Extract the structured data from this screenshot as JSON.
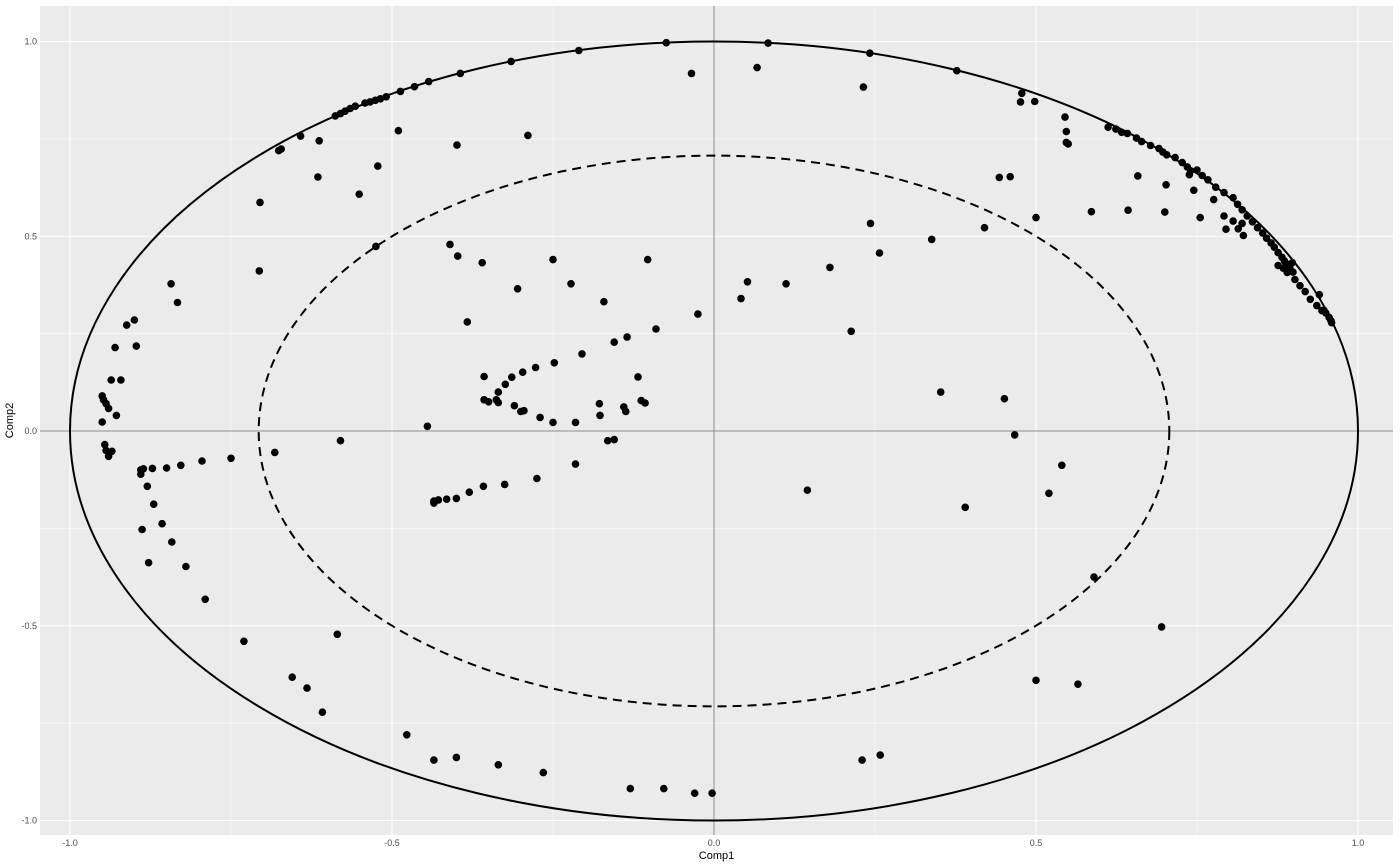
{
  "chart_data": {
    "type": "scatter",
    "title": "",
    "xlabel": "Comp1",
    "ylabel": "Comp2",
    "xlim": [
      -1.0,
      1.0
    ],
    "ylim": [
      -1.0,
      1.0
    ],
    "grid": true,
    "legend": "none",
    "x_ticks": [
      {
        "value": -1.0,
        "label": "-1.0"
      },
      {
        "value": -0.5,
        "label": "-0.5"
      },
      {
        "value": 0.0,
        "label": "0.0"
      },
      {
        "value": 0.5,
        "label": "0.5"
      },
      {
        "value": 1.0,
        "label": "1.0"
      }
    ],
    "y_ticks": [
      {
        "value": -1.0,
        "label": "-1.0"
      },
      {
        "value": -0.5,
        "label": "-0.5"
      },
      {
        "value": 0.0,
        "label": "0.0"
      },
      {
        "value": 0.5,
        "label": "0.5"
      },
      {
        "value": 1.0,
        "label": "1.0"
      }
    ],
    "reference_circles": [
      {
        "radius": 1.0,
        "style": "solid"
      },
      {
        "radius": 0.707,
        "style": "dashed"
      }
    ],
    "colors": {
      "panel": "#ebebeb",
      "grid": "#ffffff",
      "point": "#000000",
      "crosshair": "#8c8c8c"
    },
    "points": [
      [
        -0.074,
        0.997
      ],
      [
        0.084,
        0.996
      ],
      [
        -0.21,
        0.977
      ],
      [
        0.242,
        0.97
      ],
      [
        -0.315,
        0.949
      ],
      [
        -0.394,
        0.918
      ],
      [
        0.377,
        0.925
      ],
      [
        -0.443,
        0.897
      ],
      [
        -0.465,
        0.884
      ],
      [
        -0.487,
        0.872
      ],
      [
        -0.509,
        0.858
      ],
      [
        -0.518,
        0.853
      ],
      [
        -0.526,
        0.849
      ],
      [
        -0.534,
        0.845
      ],
      [
        -0.542,
        0.842
      ],
      [
        -0.557,
        0.834
      ],
      [
        -0.565,
        0.828
      ],
      [
        -0.573,
        0.821
      ],
      [
        -0.58,
        0.815
      ],
      [
        -0.588,
        0.809
      ],
      [
        -0.642,
        0.757
      ],
      [
        -0.672,
        0.724
      ],
      [
        -0.676,
        0.72
      ],
      [
        -0.613,
        0.745
      ],
      [
        -0.705,
        0.587
      ],
      [
        -0.615,
        0.652
      ],
      [
        -0.49,
        0.771
      ],
      [
        -0.399,
        0.734
      ],
      [
        -0.289,
        0.759
      ],
      [
        -0.551,
        0.608
      ],
      [
        -0.522,
        0.68
      ],
      [
        -0.706,
        0.411
      ],
      [
        -0.525,
        0.474
      ],
      [
        -0.035,
        0.918
      ],
      [
        0.067,
        0.933
      ],
      [
        0.232,
        0.883
      ],
      [
        0.478,
        0.867
      ],
      [
        0.476,
        0.845
      ],
      [
        0.498,
        0.846
      ],
      [
        0.545,
        0.806
      ],
      [
        0.547,
        0.769
      ],
      [
        0.547,
        0.741
      ],
      [
        0.55,
        0.737
      ],
      [
        0.443,
        0.651
      ],
      [
        0.46,
        0.653
      ],
      [
        0.5,
        0.548
      ],
      [
        0.586,
        0.563
      ],
      [
        0.658,
        0.655
      ],
      [
        0.643,
        0.567
      ],
      [
        0.7,
        0.562
      ],
      [
        0.42,
        0.522
      ],
      [
        0.612,
        0.78
      ],
      [
        0.624,
        0.775
      ],
      [
        0.633,
        0.767
      ],
      [
        0.642,
        0.764
      ],
      [
        0.656,
        0.752
      ],
      [
        0.664,
        0.743
      ],
      [
        0.678,
        0.733
      ],
      [
        0.691,
        0.725
      ],
      [
        0.697,
        0.716
      ],
      [
        0.703,
        0.709
      ],
      [
        0.716,
        0.702
      ],
      [
        0.727,
        0.689
      ],
      [
        0.735,
        0.678
      ],
      [
        0.74,
        0.668
      ],
      [
        0.738,
        0.658
      ],
      [
        0.75,
        0.67
      ],
      [
        0.758,
        0.656
      ],
      [
        0.767,
        0.645
      ],
      [
        0.779,
        0.626
      ],
      [
        0.792,
        0.612
      ],
      [
        0.806,
        0.599
      ],
      [
        0.813,
        0.582
      ],
      [
        0.82,
        0.568
      ],
      [
        0.828,
        0.552
      ],
      [
        0.836,
        0.537
      ],
      [
        0.844,
        0.522
      ],
      [
        0.852,
        0.508
      ],
      [
        0.858,
        0.495
      ],
      [
        0.865,
        0.483
      ],
      [
        0.87,
        0.472
      ],
      [
        0.876,
        0.458
      ],
      [
        0.882,
        0.446
      ],
      [
        0.886,
        0.436
      ],
      [
        0.89,
        0.428
      ],
      [
        0.894,
        0.419
      ],
      [
        0.899,
        0.408
      ],
      [
        0.876,
        0.425
      ],
      [
        0.884,
        0.418
      ],
      [
        0.89,
        0.407
      ],
      [
        0.902,
        0.389
      ],
      [
        0.91,
        0.373
      ],
      [
        0.918,
        0.358
      ],
      [
        0.926,
        0.338
      ],
      [
        0.936,
        0.322
      ],
      [
        0.944,
        0.309
      ],
      [
        0.95,
        0.303
      ],
      [
        0.955,
        0.292
      ],
      [
        0.958,
        0.283
      ],
      [
        0.959,
        0.278
      ],
      [
        0.745,
        0.618
      ],
      [
        0.755,
        0.548
      ],
      [
        0.776,
        0.594
      ],
      [
        0.792,
        0.552
      ],
      [
        0.795,
        0.518
      ],
      [
        0.814,
        0.519
      ],
      [
        0.822,
        0.502
      ],
      [
        0.806,
        0.539
      ],
      [
        0.82,
        0.533
      ],
      [
        0.898,
        0.432
      ],
      [
        0.702,
        0.632
      ],
      [
        0.947,
        0.31
      ],
      [
        0.94,
        0.35
      ],
      [
        -0.398,
        0.449
      ],
      [
        -0.41,
        0.479
      ],
      [
        -0.36,
        0.432
      ],
      [
        -0.383,
        0.28
      ],
      [
        -0.305,
        0.365
      ],
      [
        -0.25,
        0.44
      ],
      [
        -0.222,
        0.378
      ],
      [
        -0.171,
        0.332
      ],
      [
        -0.103,
        0.44
      ],
      [
        -0.09,
        0.262
      ],
      [
        -0.155,
        0.228
      ],
      [
        -0.135,
        0.241
      ],
      [
        -0.205,
        0.198
      ],
      [
        -0.248,
        0.175
      ],
      [
        -0.025,
        0.3
      ],
      [
        0.042,
        0.34
      ],
      [
        0.052,
        0.383
      ],
      [
        0.112,
        0.378
      ],
      [
        0.18,
        0.42
      ],
      [
        0.213,
        0.256
      ],
      [
        0.243,
        0.533
      ],
      [
        0.257,
        0.457
      ],
      [
        0.338,
        0.492
      ],
      [
        -0.357,
        0.14
      ],
      [
        -0.335,
        0.1
      ],
      [
        -0.324,
        0.12
      ],
      [
        -0.314,
        0.138
      ],
      [
        -0.297,
        0.151
      ],
      [
        -0.277,
        0.163
      ],
      [
        -0.338,
        0.08
      ],
      [
        -0.335,
        0.073
      ],
      [
        -0.35,
        0.075
      ],
      [
        -0.357,
        0.08
      ],
      [
        -0.31,
        0.065
      ],
      [
        -0.295,
        0.052
      ],
      [
        -0.3,
        0.05
      ],
      [
        -0.27,
        0.035
      ],
      [
        -0.25,
        0.022
      ],
      [
        -0.215,
        0.022
      ],
      [
        -0.178,
        0.07
      ],
      [
        -0.177,
        0.04
      ],
      [
        -0.14,
        0.062
      ],
      [
        -0.137,
        0.05
      ],
      [
        -0.118,
        0.139
      ],
      [
        -0.113,
        0.078
      ],
      [
        -0.107,
        0.072
      ],
      [
        -0.165,
        -0.025
      ],
      [
        -0.155,
        -0.022
      ],
      [
        -0.445,
        0.012
      ],
      [
        0.352,
        0.1
      ],
      [
        0.451,
        0.083
      ],
      [
        0.467,
        -0.01
      ],
      [
        -0.215,
        -0.085
      ],
      [
        -0.275,
        -0.122
      ],
      [
        -0.325,
        -0.137
      ],
      [
        -0.358,
        -0.142
      ],
      [
        -0.38,
        -0.157
      ],
      [
        -0.4,
        -0.173
      ],
      [
        -0.415,
        -0.175
      ],
      [
        -0.428,
        -0.177
      ],
      [
        -0.435,
        -0.18
      ],
      [
        -0.435,
        -0.185
      ],
      [
        0.145,
        -0.152
      ],
      [
        0.39,
        -0.196
      ],
      [
        0.52,
        -0.16
      ],
      [
        0.54,
        -0.088
      ],
      [
        -0.58,
        -0.025
      ],
      [
        -0.682,
        -0.055
      ],
      [
        -0.75,
        -0.07
      ],
      [
        -0.795,
        -0.077
      ],
      [
        -0.828,
        -0.088
      ],
      [
        -0.85,
        -0.095
      ],
      [
        -0.872,
        -0.096
      ],
      [
        -0.886,
        -0.097
      ],
      [
        -0.89,
        -0.1
      ],
      [
        -0.89,
        -0.111
      ],
      [
        -0.88,
        -0.142
      ],
      [
        -0.87,
        -0.188
      ],
      [
        -0.857,
        -0.238
      ],
      [
        -0.888,
        -0.253
      ],
      [
        -0.842,
        -0.285
      ],
      [
        -0.878,
        -0.338
      ],
      [
        -0.82,
        -0.348
      ],
      [
        -0.79,
        -0.432
      ],
      [
        -0.73,
        -0.54
      ],
      [
        -0.585,
        -0.522
      ],
      [
        -0.655,
        -0.632
      ],
      [
        -0.632,
        -0.66
      ],
      [
        -0.608,
        -0.722
      ],
      [
        -0.477,
        -0.78
      ],
      [
        -0.435,
        -0.845
      ],
      [
        -0.4,
        -0.838
      ],
      [
        -0.335,
        -0.857
      ],
      [
        -0.265,
        -0.877
      ],
      [
        -0.13,
        -0.918
      ],
      [
        -0.078,
        -0.918
      ],
      [
        -0.03,
        -0.93
      ],
      [
        -0.003,
        -0.93
      ],
      [
        0.23,
        -0.845
      ],
      [
        0.258,
        -0.832
      ],
      [
        0.5,
        -0.64
      ],
      [
        0.565,
        -0.65
      ],
      [
        0.59,
        -0.375
      ],
      [
        0.695,
        -0.503
      ],
      [
        -0.843,
        0.378
      ],
      [
        -0.833,
        0.33
      ],
      [
        -0.912,
        0.272
      ],
      [
        -0.9,
        0.285
      ],
      [
        -0.897,
        0.218
      ],
      [
        -0.93,
        0.214
      ],
      [
        -0.921,
        0.131
      ],
      [
        -0.936,
        0.131
      ],
      [
        -0.95,
        0.023
      ],
      [
        -0.948,
        0.08
      ],
      [
        -0.95,
        0.09
      ],
      [
        -0.944,
        0.07
      ],
      [
        -0.94,
        0.058
      ],
      [
        -0.928,
        0.04
      ],
      [
        -0.946,
        -0.035
      ],
      [
        -0.944,
        -0.05
      ],
      [
        -0.935,
        -0.052
      ],
      [
        -0.94,
        -0.065
      ]
    ]
  }
}
